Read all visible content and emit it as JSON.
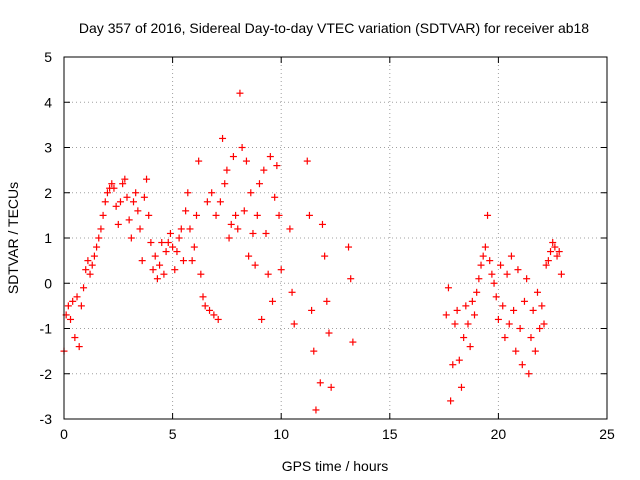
{
  "chart_data": {
    "type": "scatter",
    "title": "Day 357 of 2016, Sidereal Day-to-day VTEC variation (SDTVAR) for receiver ab18",
    "xlabel": "GPS time / hours",
    "ylabel": "SDTVAR / TECUs",
    "xlim": [
      0,
      25
    ],
    "ylim": [
      -3,
      5
    ],
    "xticks": [
      0,
      5,
      10,
      15,
      20,
      25
    ],
    "yticks": [
      -3,
      -2,
      -1,
      0,
      1,
      2,
      3,
      4,
      5
    ],
    "grid": true,
    "marker": "+",
    "color": "#ff0000",
    "series": [
      {
        "name": "SDTVAR",
        "x": [
          0.0,
          0.1,
          0.2,
          0.3,
          0.4,
          0.5,
          0.6,
          0.7,
          0.8,
          0.9,
          1.0,
          1.1,
          1.2,
          1.3,
          1.4,
          1.5,
          1.6,
          1.7,
          1.8,
          1.9,
          2.0,
          2.1,
          2.2,
          2.3,
          2.4,
          2.5,
          2.6,
          2.7,
          2.8,
          2.9,
          3.0,
          3.1,
          3.2,
          3.3,
          3.4,
          3.5,
          3.6,
          3.7,
          3.8,
          3.9,
          4.0,
          4.1,
          4.2,
          4.3,
          4.4,
          4.5,
          4.6,
          4.7,
          4.8,
          4.9,
          5.0,
          5.1,
          5.2,
          5.3,
          5.4,
          5.5,
          5.6,
          5.7,
          5.8,
          5.9,
          6.0,
          6.1,
          6.2,
          6.3,
          6.4,
          6.5,
          6.6,
          6.7,
          6.8,
          6.9,
          7.0,
          7.1,
          7.2,
          7.3,
          7.4,
          7.5,
          7.6,
          7.7,
          7.8,
          7.9,
          8.0,
          8.1,
          8.2,
          8.3,
          8.4,
          8.5,
          8.6,
          8.7,
          8.8,
          8.9,
          9.0,
          9.1,
          9.2,
          9.3,
          9.4,
          9.5,
          9.6,
          9.7,
          9.8,
          9.9,
          10.0,
          10.4,
          10.5,
          10.6,
          11.2,
          11.3,
          11.4,
          11.5,
          11.6,
          11.8,
          11.9,
          12.0,
          12.1,
          12.2,
          12.3,
          13.1,
          13.2,
          13.3,
          17.6,
          17.7,
          17.8,
          17.9,
          18.0,
          18.1,
          18.2,
          18.3,
          18.4,
          18.5,
          18.6,
          18.7,
          18.8,
          18.9,
          19.0,
          19.1,
          19.2,
          19.3,
          19.4,
          19.5,
          19.6,
          19.7,
          19.8,
          19.9,
          20.0,
          20.1,
          20.2,
          20.3,
          20.4,
          20.5,
          20.6,
          20.7,
          20.8,
          20.9,
          21.0,
          21.1,
          21.2,
          21.3,
          21.4,
          21.5,
          21.6,
          21.7,
          21.8,
          21.9,
          22.0,
          22.1,
          22.2,
          22.3,
          22.4,
          22.5,
          22.6,
          22.7,
          22.8,
          22.9
        ],
        "y": [
          -1.5,
          -0.7,
          -0.5,
          -0.8,
          -0.4,
          -1.2,
          -0.3,
          -1.4,
          -0.5,
          -0.1,
          0.3,
          0.5,
          0.2,
          0.4,
          0.6,
          0.8,
          1.0,
          1.2,
          1.5,
          1.8,
          2.0,
          2.1,
          2.2,
          2.1,
          1.7,
          1.3,
          1.8,
          2.2,
          2.3,
          1.9,
          1.4,
          1.0,
          1.8,
          2.0,
          1.6,
          1.2,
          0.5,
          1.9,
          2.3,
          1.5,
          0.9,
          0.3,
          0.6,
          0.1,
          0.4,
          0.9,
          0.2,
          0.7,
          0.9,
          1.1,
          0.8,
          0.3,
          0.7,
          1.0,
          1.2,
          0.5,
          1.6,
          2.0,
          1.2,
          0.5,
          0.8,
          1.5,
          2.7,
          0.2,
          -0.3,
          -0.5,
          1.8,
          -0.6,
          2.0,
          -0.7,
          1.5,
          -0.8,
          1.8,
          3.2,
          2.2,
          2.5,
          1.0,
          1.3,
          2.8,
          1.5,
          1.2,
          4.2,
          3.0,
          1.6,
          2.7,
          0.6,
          2.0,
          1.1,
          0.4,
          1.5,
          2.2,
          -0.8,
          2.5,
          1.1,
          0.2,
          2.8,
          -0.4,
          1.9,
          2.6,
          1.5,
          0.3,
          1.2,
          -0.2,
          -0.9,
          2.7,
          1.5,
          -0.6,
          -1.5,
          -2.8,
          -2.2,
          1.3,
          0.6,
          -0.4,
          -1.1,
          -2.3,
          0.8,
          0.1,
          -1.3,
          -0.7,
          -0.1,
          -2.6,
          -1.8,
          -0.9,
          -0.6,
          -1.7,
          -2.3,
          -1.2,
          -0.5,
          -0.9,
          -1.4,
          -0.4,
          -0.7,
          -0.2,
          0.1,
          0.4,
          0.6,
          0.8,
          1.5,
          0.5,
          0.2,
          0.0,
          -0.3,
          -0.8,
          0.4,
          -0.5,
          -1.2,
          0.2,
          -0.9,
          0.6,
          -0.6,
          -1.5,
          0.3,
          -1.0,
          -1.8,
          -0.4,
          0.1,
          -2.0,
          -1.2,
          -0.6,
          -1.5,
          -0.2,
          -1.0,
          -0.5,
          -0.9,
          0.4,
          0.5,
          0.7,
          0.9,
          0.8,
          0.6,
          0.7,
          0.2
        ]
      }
    ]
  }
}
